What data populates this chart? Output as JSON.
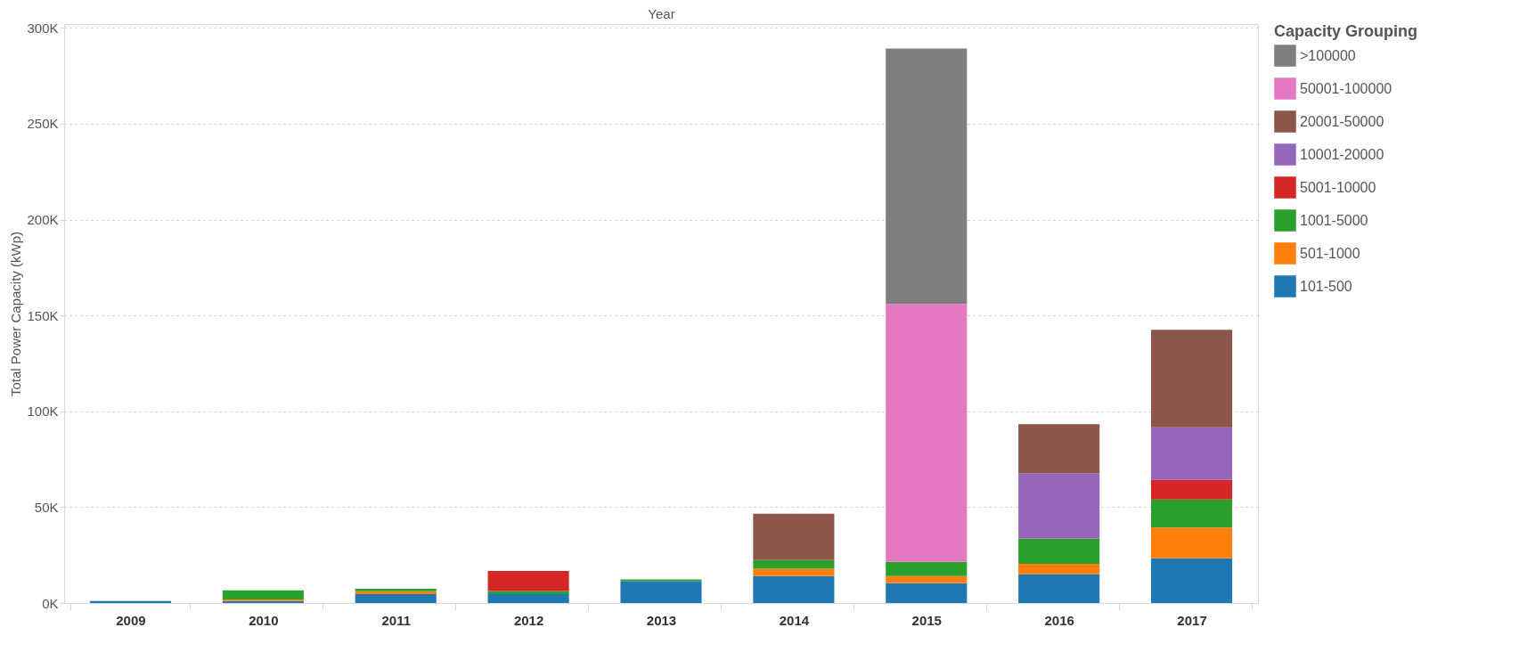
{
  "chart_data": {
    "type": "bar",
    "stacked": true,
    "xlabel": "Year",
    "ylabel": "Total Power Capacity (kWp)",
    "legend_title": "Capacity Grouping",
    "legend": "right",
    "grid": "y",
    "categories": [
      "2009",
      "2010",
      "2011",
      "2012",
      "2013",
      "2014",
      "2015",
      "2016",
      "2017"
    ],
    "ylim": [
      0,
      302000
    ],
    "yticks": [
      {
        "value": 0,
        "label": "0K"
      },
      {
        "value": 50000,
        "label": "50K"
      },
      {
        "value": 100000,
        "label": "100K"
      },
      {
        "value": 150000,
        "label": "150K"
      },
      {
        "value": 200000,
        "label": "200K"
      },
      {
        "value": 250000,
        "label": "250K"
      },
      {
        "value": 300000,
        "label": "300K"
      }
    ],
    "series": [
      {
        "name": "101-500",
        "color": "#1f77b4",
        "values": [
          1000,
          1000,
          4700,
          4700,
          11400,
          14100,
          10300,
          15000,
          23400
        ]
      },
      {
        "name": "501-1000",
        "color": "#ff7f0e",
        "values": [
          null,
          900,
          1400,
          null,
          null,
          3800,
          3800,
          5500,
          16000
        ]
      },
      {
        "name": "1001-5000",
        "color": "#2ca02c",
        "values": [
          null,
          4700,
          1300,
          1600,
          900,
          4500,
          7400,
          13100,
          14600
        ]
      },
      {
        "name": "5001-10000",
        "color": "#d62728",
        "values": [
          null,
          null,
          null,
          10400,
          null,
          null,
          null,
          null,
          10200
        ]
      },
      {
        "name": "10001-20000",
        "color": "#9467bd",
        "values": [
          null,
          null,
          null,
          null,
          null,
          null,
          null,
          34000,
          27500
        ]
      },
      {
        "name": "20001-50000",
        "color": "#8c564b",
        "values": [
          null,
          null,
          null,
          null,
          null,
          24200,
          null,
          25700,
          50800
        ]
      },
      {
        "name": "50001-100000",
        "color": "#e377c2",
        "values": [
          null,
          null,
          null,
          null,
          null,
          null,
          134500,
          null,
          null
        ]
      },
      {
        "name": ">100000",
        "color": "#7f7f7f",
        "values": [
          null,
          null,
          null,
          null,
          null,
          null,
          133200,
          null,
          null
        ]
      }
    ]
  }
}
